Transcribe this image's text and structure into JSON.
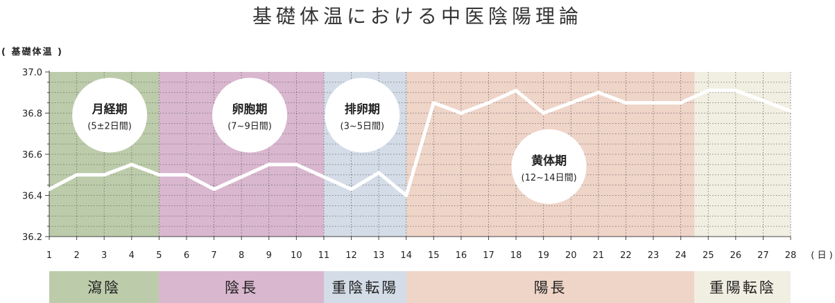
{
  "title": "基礎体温における中医陰陽理論",
  "chart_data": {
    "type": "line",
    "y_axis_label": "( 基礎体温 )",
    "x_unit_label": "( 日 )",
    "ylim": [
      36.2,
      37.0
    ],
    "yticks": [
      "36.2",
      "36.4",
      "36.6",
      "36.8",
      "37.0"
    ],
    "x": [
      1,
      2,
      3,
      4,
      5,
      6,
      7,
      8,
      9,
      10,
      11,
      12,
      13,
      14,
      15,
      16,
      17,
      18,
      19,
      20,
      21,
      22,
      23,
      24,
      25,
      26,
      27,
      28
    ],
    "values": [
      36.43,
      36.5,
      36.5,
      36.55,
      36.5,
      36.5,
      36.43,
      36.49,
      36.55,
      36.55,
      36.49,
      36.43,
      36.51,
      36.4,
      36.85,
      36.8,
      36.85,
      36.91,
      36.8,
      36.85,
      36.9,
      36.85,
      36.85,
      36.85,
      36.91,
      36.91,
      36.86,
      36.81
    ],
    "grid": true,
    "line_color": "#ffffff",
    "phases": [
      {
        "name": "月経期",
        "duration": "(5±2日間)",
        "band_label": "瀉陰",
        "from_day": 1,
        "to_day": 5,
        "color": "#bcccaa",
        "circle_day": 3.2,
        "circle_temp": 36.79
      },
      {
        "name": "卵胞期",
        "duration": "(7~9日間)",
        "band_label": "陰長",
        "from_day": 5,
        "to_day": 11,
        "color": "#d9b7cf",
        "circle_day": 8.3,
        "circle_temp": 36.79
      },
      {
        "name": "排卵期",
        "duration": "(3~5日間)",
        "band_label": "重陰転陽",
        "from_day": 11,
        "to_day": 14,
        "color": "#d3dce7",
        "circle_day": 12.4,
        "circle_temp": 36.79
      },
      {
        "name": "黄体期",
        "duration": "(12~14日間)",
        "band_label": "陽長",
        "from_day": 14,
        "to_day": 24.5,
        "color": "#efd4c8",
        "circle_day": 19.2,
        "circle_temp": 36.54
      },
      {
        "name": "",
        "duration": "",
        "band_label": "重陽転陰",
        "from_day": 24.5,
        "to_day": 28,
        "color": "#f1efe2"
      }
    ]
  }
}
